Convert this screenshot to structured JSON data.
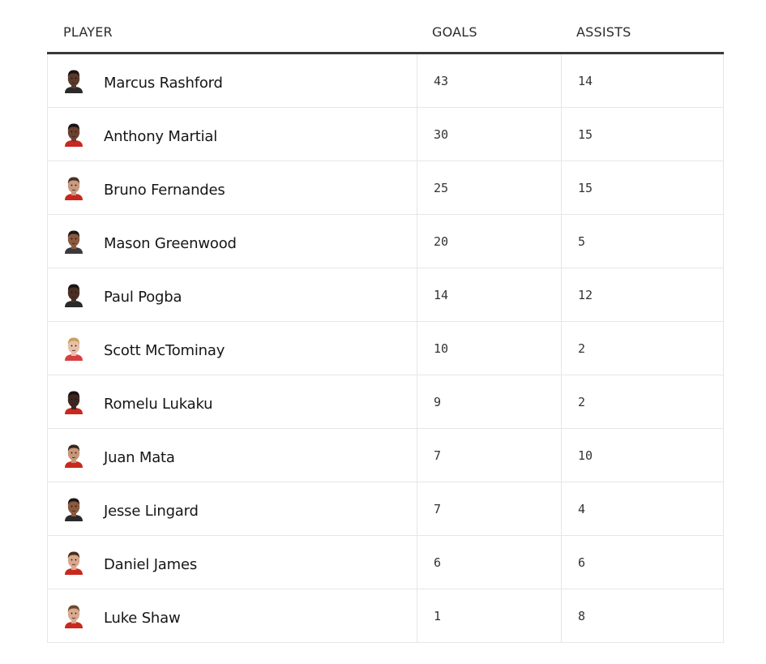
{
  "table": {
    "headers": {
      "player": "PLAYER",
      "goals": "GOALS",
      "assists": "ASSISTS"
    },
    "rows": [
      {
        "name": "Marcus Rashford",
        "goals": "43",
        "assists": "14",
        "skin": "#5a3a2a",
        "hair": "#1a1212",
        "shirt": "#2a2a2a"
      },
      {
        "name": "Anthony Martial",
        "goals": "30",
        "assists": "15",
        "skin": "#6b4030",
        "hair": "#1a1212",
        "shirt": "#c8281e"
      },
      {
        "name": "Bruno Fernandes",
        "goals": "25",
        "assists": "15",
        "skin": "#c89a80",
        "hair": "#4a3020",
        "shirt": "#c8281e"
      },
      {
        "name": "Mason Greenwood",
        "goals": "20",
        "assists": "5",
        "skin": "#8a5a40",
        "hair": "#1e1614",
        "shirt": "#3a3a3a"
      },
      {
        "name": "Paul Pogba",
        "goals": "14",
        "assists": "12",
        "skin": "#4a2e24",
        "hair": "#1a1212",
        "shirt": "#2a2a2a"
      },
      {
        "name": "Scott McTominay",
        "goals": "10",
        "assists": "2",
        "skin": "#e8c0a8",
        "hair": "#c8a060",
        "shirt": "#d84040"
      },
      {
        "name": "Romelu Lukaku",
        "goals": "9",
        "assists": "2",
        "skin": "#3e2620",
        "hair": "#1a1212",
        "shirt": "#c8281e"
      },
      {
        "name": "Juan Mata",
        "goals": "7",
        "assists": "10",
        "skin": "#c8967a",
        "hair": "#3a2418",
        "shirt": "#c8281e"
      },
      {
        "name": "Jesse Lingard",
        "goals": "7",
        "assists": "4",
        "skin": "#8a5a40",
        "hair": "#1e1614",
        "shirt": "#2a2a2a"
      },
      {
        "name": "Daniel James",
        "goals": "6",
        "assists": "6",
        "skin": "#d8a88c",
        "hair": "#4a2e1c",
        "shirt": "#c8281e"
      },
      {
        "name": "Luke Shaw",
        "goals": "1",
        "assists": "8",
        "skin": "#d8aa90",
        "hair": "#6a4a30",
        "shirt": "#c8281e"
      }
    ]
  }
}
